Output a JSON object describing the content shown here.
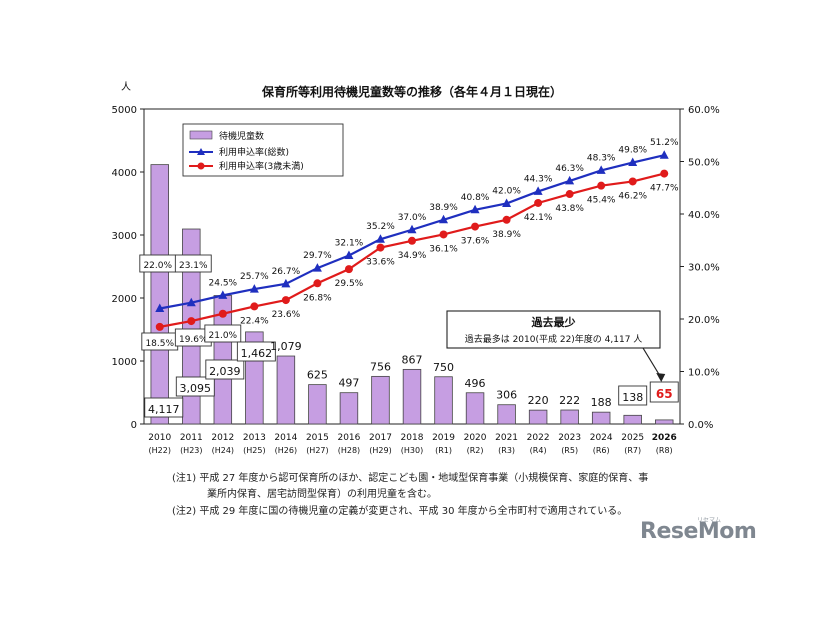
{
  "chart_data": {
    "type": "bar",
    "title": "保育所等利用待機児童数等の推移（各年４月１日現在）",
    "y_left_unit": "人",
    "y_left_ticks": [
      "0",
      "1000",
      "2000",
      "3000",
      "4000",
      "5000"
    ],
    "y_right_ticks": [
      "0.0%",
      "10.0%",
      "20.0%",
      "30.0%",
      "40.0%",
      "50.0%",
      "60.0%"
    ],
    "ylim_left": [
      0,
      5000
    ],
    "ylim_right": [
      0,
      60
    ],
    "categories": [
      "2010",
      "2011",
      "2012",
      "2013",
      "2014",
      "2015",
      "2016",
      "2017",
      "2018",
      "2019",
      "2020",
      "2021",
      "2022",
      "2023",
      "2024",
      "2025",
      "2026"
    ],
    "era_labels": [
      "(H22)",
      "(H23)",
      "(H24)",
      "(H25)",
      "(H26)",
      "(H27)",
      "(H28)",
      "(H29)",
      "(H30)",
      "(R1)",
      "(R2)",
      "(R3)",
      "(R4)",
      "(R5)",
      "(R6)",
      "(R7)",
      "(R8)"
    ],
    "series": [
      {
        "name": "待機児童数",
        "kind": "bar",
        "axis": "left",
        "color": "#c69ee2",
        "values": [
          4117,
          3095,
          2039,
          1462,
          1079,
          625,
          497,
          756,
          867,
          750,
          496,
          306,
          220,
          222,
          188,
          138,
          65
        ],
        "labels": [
          "4,117",
          "3,095",
          "2,039",
          "1,462",
          "1,079",
          "625",
          "497",
          "756",
          "867",
          "750",
          "496",
          "306",
          "220",
          "222",
          "188",
          "138",
          "65"
        ]
      },
      {
        "name": "利用申込率(総数)",
        "kind": "line",
        "axis": "right",
        "color": "#1f2fbf",
        "marker": "triangle",
        "values": [
          22.0,
          23.1,
          24.5,
          25.7,
          26.7,
          29.7,
          32.1,
          35.2,
          37.0,
          38.9,
          40.8,
          42.0,
          44.3,
          46.3,
          48.3,
          49.8,
          51.2
        ],
        "labels": [
          "22.0%",
          "23.1%",
          "24.5%",
          "25.7%",
          "26.7%",
          "29.7%",
          "32.1%",
          "35.2%",
          "37.0%",
          "38.9%",
          "40.8%",
          "42.0%",
          "44.3%",
          "46.3%",
          "48.3%",
          "49.8%",
          "51.2%"
        ]
      },
      {
        "name": "利用申込率(3歳未満)",
        "kind": "line",
        "axis": "right",
        "color": "#e01b1b",
        "marker": "circle",
        "values": [
          18.5,
          19.6,
          21.0,
          22.4,
          23.6,
          26.8,
          29.5,
          33.6,
          34.9,
          36.1,
          37.6,
          38.9,
          42.1,
          43.8,
          45.4,
          46.2,
          47.7
        ],
        "labels": [
          "18.5%",
          "19.6%",
          "21.0%",
          "22.4%",
          "23.6%",
          "26.8%",
          "29.5%",
          "33.6%",
          "34.9%",
          "36.1%",
          "37.6%",
          "38.9%",
          "42.1%",
          "43.8%",
          "45.4%",
          "46.2%",
          "47.7%"
        ]
      }
    ],
    "legend": [
      "待機児童数",
      "利用申込率(総数)",
      "利用申込率(3歳未満)"
    ],
    "legend_placement": "top-left",
    "callout": {
      "heading": "過去最少",
      "text": "過去最多は 2010(平成 22)年度の 4,117 人"
    }
  },
  "notes": {
    "note1_line1": "(注1) 平成 27 年度から認可保育所のほか、認定こども園・地域型保育事業（小規模保育、家庭的保育、事",
    "note1_line2": "業所内保育、居宅訪問型保育）の利用児童を含む。",
    "note2": "(注2) 平成 29 年度に国の待機児童の定義が変更され、平成 30 年度から全市町村で適用されている。"
  },
  "branding": {
    "logo": "ReseMom",
    "logo_sub": "リセマム"
  }
}
